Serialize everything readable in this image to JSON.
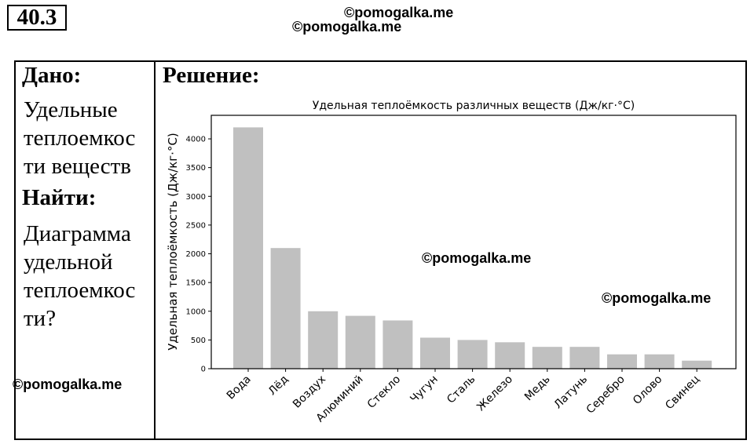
{
  "header": {
    "problem_number": "40.3",
    "watermarks": [
      "©pomogalka.me",
      "©pomogalka.me",
      "©pomogalka.me",
      "©pomogalka.me",
      "©pomogalka.me"
    ]
  },
  "given": {
    "heading": "Дано:",
    "text": "Удельные\nтеплоемкос\nти веществ"
  },
  "find": {
    "heading": "Найти:",
    "text": "Диаграмма\nудельной\nтеплоемкос\nти?"
  },
  "solution": {
    "heading": "Решение:"
  },
  "chart_data": {
    "type": "bar",
    "title": "Удельная теплоёмкость различных веществ (Дж/кг·°C)",
    "xlabel": "",
    "ylabel": "Удельная теплоёмкость (Дж/кг·°C)",
    "categories": [
      "Вода",
      "Лёд",
      "Воздух",
      "Алюминий",
      "Стекло",
      "Чугун",
      "Сталь",
      "Железо",
      "Медь",
      "Латунь",
      "Серебро",
      "Олово",
      "Свинец"
    ],
    "values": [
      4200,
      2100,
      1000,
      920,
      840,
      540,
      500,
      460,
      380,
      380,
      250,
      250,
      140
    ],
    "ylim": [
      0,
      4410
    ],
    "yticks": [
      0,
      500,
      1000,
      1500,
      2000,
      2500,
      3000,
      3500,
      4000
    ],
    "bar_color": "#c0c0c0",
    "grid": false,
    "legend": "none"
  }
}
